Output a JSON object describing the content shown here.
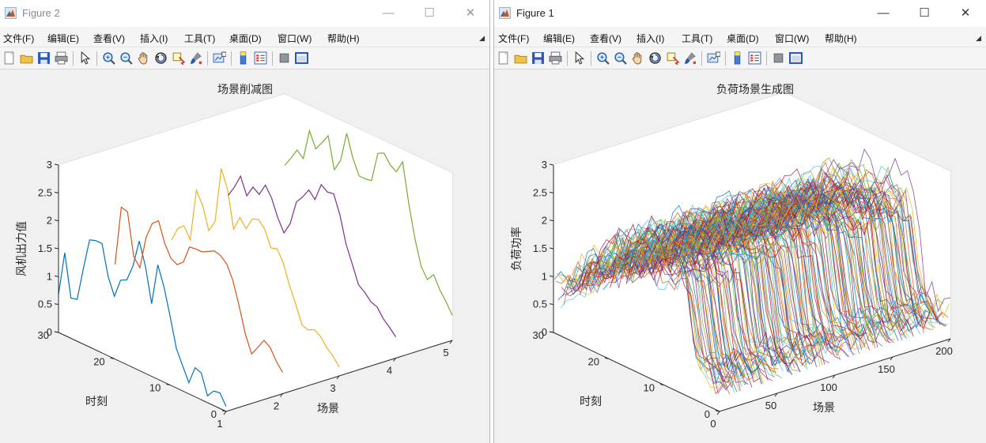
{
  "windows": [
    {
      "id": "win2",
      "title": "Figure 2",
      "menu": [
        "文件(F)",
        "编辑(E)",
        "查看(V)",
        "插入(I)",
        "工具(T)",
        "桌面(D)",
        "窗口(W)",
        "帮助(H)"
      ],
      "chart_data": {
        "type": "line",
        "view": "3d",
        "title": "场景削减图",
        "xlabel": "场景",
        "ylabel": "时刻",
        "zlabel": "风机出力值",
        "xlim": [
          1,
          5
        ],
        "ylim": [
          0,
          30
        ],
        "zlim": [
          0,
          3
        ],
        "xticks": [
          "1",
          "2",
          "3",
          "4",
          "5"
        ],
        "yticks": [
          "0",
          "10",
          "20",
          "30"
        ],
        "zticks": [
          "0",
          "0.5",
          "1",
          "1.5",
          "2",
          "2.5",
          "3"
        ],
        "grid": true,
        "series": [
          {
            "scenario": 1,
            "color": "#0072bd",
            "z": [
              0.68,
              1.48,
              0.72,
              0.75,
              1.35,
              1.92,
              1.96,
              1.96,
              1.42,
              1.12,
              1.46,
              1.52,
              1.82,
              2.32,
              1.92,
              1.3,
              2.05,
              1.7,
              1.22,
              0.7,
              0.45,
              0.2,
              0.52,
              0.48,
              0.12,
              0.26,
              0.28,
              0.09
            ]
          },
          {
            "scenario": 2,
            "color": "#d95319",
            "z": [
              0.9,
              1.98,
              1.95,
              1.2,
              1.05,
              1.65,
              1.95,
              2.05,
              1.7,
              1.48,
              1.42,
              1.52,
              1.84,
              1.86,
              1.86,
              1.92,
              1.98,
              1.95,
              1.85,
              1.6,
              1.2,
              0.75,
              0.45,
              0.62,
              0.8,
              0.72,
              0.52,
              0.38
            ]
          },
          {
            "scenario": 3,
            "color": "#edb120",
            "z": [
              1.02,
              1.28,
              1.38,
              1.18,
              2.12,
              1.9,
              1.5,
              1.72,
              2.72,
              2.4,
              1.74,
              2.0,
              1.85,
              2.08,
              2.12,
              2.0,
              1.72,
              1.75,
              1.55,
              1.2,
              0.92,
              0.6,
              0.56,
              0.62,
              0.55,
              0.4,
              0.3,
              0.16
            ]
          },
          {
            "scenario": 4,
            "color": "#7e2f8e",
            "z": [
              1.5,
              1.7,
              1.95,
              1.65,
              1.86,
              1.78,
              2.0,
              1.82,
              1.52,
              1.3,
              1.52,
              1.96,
              2.1,
              2.28,
              2.16,
              2.48,
              2.4,
              2.42,
              2.1,
              1.62,
              1.32,
              1.0,
              0.92,
              0.8,
              0.76,
              0.6,
              0.5,
              0.38
            ]
          },
          {
            "scenario": 5,
            "color": "#77ac30",
            "z": [
              1.72,
              1.9,
              2.1,
              2.0,
              2.55,
              2.28,
              2.44,
              2.62,
              2.06,
              2.28,
              2.82,
              2.42,
              2.16,
              2.16,
              2.18,
              2.72,
              2.78,
              2.62,
              2.55,
              2.78,
              2.08,
              1.5,
              1.06,
              0.88,
              1.02,
              0.8,
              0.64,
              0.45
            ]
          }
        ]
      }
    },
    {
      "id": "win1",
      "title": "Figure 1",
      "menu": [
        "文件(F)",
        "编辑(E)",
        "查看(V)",
        "插入(I)",
        "工具(T)",
        "桌面(D)",
        "窗口(W)",
        "帮助(H)"
      ],
      "chart_data": {
        "type": "line",
        "view": "3d",
        "title": "负荷场景生成图",
        "xlabel": "场景",
        "ylabel": "时刻",
        "zlabel": "负荷功率",
        "xlim": [
          0,
          200
        ],
        "ylim": [
          0,
          30
        ],
        "zlim": [
          0,
          3
        ],
        "xticks": [
          "0",
          "50",
          "100",
          "150",
          "200"
        ],
        "yticks": [
          "0",
          "10",
          "20",
          "30"
        ],
        "zticks": [
          "0",
          "0.5",
          "1",
          "1.5",
          "2",
          "2.5",
          "3"
        ],
        "grid": true,
        "scenario_count": 200,
        "profile": [
          0.75,
          0.88,
          0.98,
          1.08,
          1.22,
          1.38,
          1.5,
          1.62,
          1.72,
          1.8,
          1.9,
          1.98,
          2.05,
          2.08,
          2.1,
          2.12,
          2.15,
          2.18,
          2.2,
          2.22,
          2.18,
          2.1,
          1.3,
          0.6,
          0.55,
          0.52,
          0.48,
          0.45
        ],
        "colors": [
          "#0072bd",
          "#d95319",
          "#edb120",
          "#7e2f8e",
          "#77ac30",
          "#4dbeee",
          "#a2142f"
        ]
      }
    }
  ]
}
